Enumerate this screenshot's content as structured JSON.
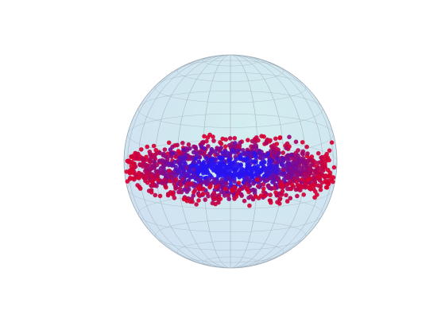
{
  "chart_data": {
    "type": "scatter3d",
    "grid": true
  }
}
